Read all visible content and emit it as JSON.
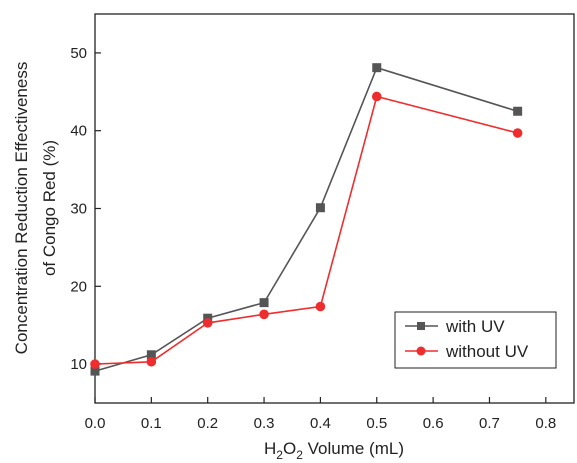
{
  "chart_data": {
    "type": "line",
    "x": [
      0.0,
      0.1,
      0.2,
      0.3,
      0.4,
      0.5,
      0.75
    ],
    "series": [
      {
        "name": "with UV",
        "color": "#555555",
        "marker": "square",
        "values": [
          9.1,
          11.2,
          15.9,
          17.9,
          30.1,
          48.1,
          42.5
        ]
      },
      {
        "name": "without UV",
        "color": "#ee2e2e",
        "marker": "circle",
        "values": [
          10.0,
          10.3,
          15.3,
          16.4,
          17.4,
          44.4,
          39.7
        ]
      }
    ],
    "xlim": [
      0.0,
      0.85
    ],
    "ylim": [
      5,
      55
    ],
    "xticks": [
      "0.0",
      "0.1",
      "0.2",
      "0.3",
      "0.4",
      "0.5",
      "0.6",
      "0.7",
      "0.8"
    ],
    "yticks": [
      "10",
      "20",
      "30",
      "40",
      "50"
    ],
    "xlabel": {
      "main": "H",
      "sub1": "2",
      "mid": "O",
      "sub2": "2",
      "rest": " Volume (mL)"
    },
    "ylabel": {
      "line1": "Concentration Reduction Effectiveness",
      "line2": "of Congo Red (%)"
    },
    "legend_position": "bottom-right",
    "grid": false
  }
}
